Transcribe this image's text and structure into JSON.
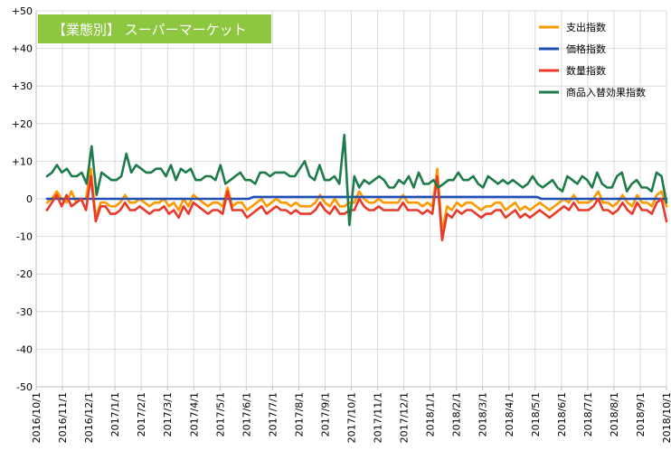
{
  "chart_data": {
    "type": "line",
    "title": "【業態別】 スーパーマーケット",
    "title_bg_color": "#8DC63F",
    "ylim": [
      -50,
      50
    ],
    "yticks": [
      50,
      40,
      30,
      20,
      10,
      0,
      -10,
      -20,
      -30,
      -40,
      -50
    ],
    "ytick_labels": [
      "+50",
      "+40",
      "+30",
      "+20",
      "+10",
      "0",
      "-10",
      "-20",
      "-30",
      "-40",
      "-50"
    ],
    "grid": true,
    "legend_position": "top-right",
    "x_start": "2016/10/1",
    "x_end": "2018/10/1",
    "xtick_labels": [
      "2016/10/1",
      "2016/11/1",
      "2016/12/1",
      "2017/1/1",
      "2017/2/1",
      "2017/3/1",
      "2017/4/1",
      "2017/5/1",
      "2017/6/1",
      "2017/7/1",
      "2017/8/1",
      "2017/9/1",
      "2017/10/1",
      "2017/11/1",
      "2017/12/1",
      "2018/1/1",
      "2018/2/1",
      "2018/3/1",
      "2018/4/1",
      "2018/5/1",
      "2018/6/1",
      "2018/7/1",
      "2018/8/1",
      "2018/9/1",
      "2018/10/1"
    ],
    "series": [
      {
        "name": "支出指数",
        "color": "#FF9900",
        "values": [
          -1,
          0,
          2,
          0,
          -1,
          2,
          -1,
          0,
          0,
          8,
          -5,
          -1,
          -1,
          -2,
          -2,
          -1,
          1,
          -1,
          -1,
          0,
          -1,
          -2,
          -1,
          -1,
          0,
          -2,
          -1,
          -3,
          0,
          -2,
          1,
          0,
          -1,
          -2,
          -1,
          -1,
          -2,
          3,
          -2,
          -1,
          -1,
          -3,
          -2,
          -1,
          0,
          -2,
          -1,
          0,
          -1,
          -1,
          -2,
          -1,
          -2,
          -2,
          -2,
          -1,
          1,
          -1,
          -2,
          0,
          -2,
          -2,
          -1,
          -1,
          2,
          0,
          -1,
          -1,
          0,
          -1,
          -1,
          -1,
          -1,
          1,
          -1,
          -1,
          -1,
          -2,
          -1,
          -2,
          8,
          -9,
          -2,
          -3,
          -1,
          -2,
          -1,
          -1,
          -2,
          -3,
          -2,
          -2,
          -1,
          -1,
          -3,
          -2,
          -1,
          -3,
          -2,
          -3,
          -2,
          -1,
          -2,
          -3,
          -2,
          -1,
          0,
          -1,
          1,
          -1,
          -1,
          -1,
          0,
          2,
          -1,
          -1,
          -2,
          -1,
          1,
          -1,
          -2,
          1,
          -1,
          -1,
          -2,
          1,
          2,
          -2
        ]
      },
      {
        "name": "価格指数",
        "color": "#1F4EB4",
        "values": [
          0,
          0,
          0,
          0,
          0,
          0,
          0,
          0,
          0,
          0,
          0,
          0,
          0,
          0,
          0,
          0,
          0,
          0,
          0,
          0,
          0,
          0,
          0,
          0,
          0,
          0,
          0,
          0,
          0,
          0,
          0,
          0,
          0,
          0,
          0,
          0,
          0,
          0,
          0,
          0,
          0,
          0,
          0,
          0.5,
          0.5,
          0.5,
          0.5,
          0.5,
          0.5,
          0.5,
          0.5,
          0.5,
          0.5,
          0.5,
          0.5,
          0.5,
          0.5,
          0.5,
          0.5,
          0.5,
          0.5,
          0.5,
          0.5,
          0.5,
          0.5,
          0.5,
          0.5,
          0.5,
          0.5,
          0.5,
          0.5,
          0.5,
          0.5,
          0.5,
          0.5,
          0.5,
          0.5,
          0.5,
          0.5,
          0.5,
          0.5,
          0.5,
          0.5,
          0.5,
          0.5,
          0.5,
          0.5,
          0.5,
          0.5,
          0.5,
          0.5,
          0.5,
          0.5,
          0.5,
          0.5,
          0.5,
          0.5,
          0.5,
          0.5,
          0.5,
          0.5,
          0.5,
          0.5,
          0,
          0,
          0,
          0,
          0,
          0,
          0,
          0,
          0,
          0,
          0,
          0,
          0,
          0,
          0,
          0,
          0,
          0,
          0,
          0,
          0,
          0,
          0,
          0,
          0,
          0,
          0
        ]
      },
      {
        "name": "数量指数",
        "color": "#E8392B",
        "values": [
          -3,
          -1,
          1,
          -2,
          1,
          -2,
          -1,
          0,
          -3,
          6,
          -6,
          -2,
          -2,
          -4,
          -4,
          -3,
          -1,
          -3,
          -3,
          -2,
          -3,
          -4,
          -3,
          -3,
          -2,
          -4,
          -3,
          -5,
          -2,
          -4,
          -1,
          -2,
          -3,
          -4,
          -3,
          -3,
          -4,
          2,
          -3,
          -3,
          -3,
          -5,
          -4,
          -3,
          -2,
          -4,
          -3,
          -2,
          -3,
          -3,
          -4,
          -3,
          -4,
          -4,
          -4,
          -3,
          -1,
          -3,
          -4,
          -2,
          -4,
          -4,
          -3,
          -3,
          0,
          -2,
          -3,
          -3,
          -2,
          -3,
          -3,
          -3,
          -3,
          -1,
          -3,
          -3,
          -3,
          -4,
          -3,
          -4,
          6,
          -11,
          -4,
          -5,
          -3,
          -4,
          -3,
          -3,
          -4,
          -5,
          -4,
          -4,
          -3,
          -3,
          -5,
          -4,
          -3,
          -5,
          -4,
          -5,
          -4,
          -3,
          -4,
          -5,
          -4,
          -3,
          -2,
          -3,
          -1,
          -3,
          -3,
          -3,
          -2,
          0,
          -3,
          -3,
          -4,
          -3,
          -1,
          -3,
          -4,
          -1,
          -3,
          -3,
          -4,
          -1,
          0,
          -6
        ]
      },
      {
        "name": "商品入替効果指数",
        "color": "#1E7B4A",
        "values": [
          6,
          7,
          9,
          7,
          8,
          6,
          6,
          7,
          4,
          14,
          1,
          7,
          6,
          5,
          5,
          6,
          12,
          7,
          9,
          8,
          7,
          7,
          8,
          8,
          6,
          9,
          5,
          8,
          7,
          8,
          5,
          5,
          6,
          6,
          5,
          9,
          4,
          5,
          6,
          7,
          5,
          5,
          4,
          7,
          7,
          6,
          7,
          7,
          7,
          6,
          6,
          8,
          10,
          6,
          5,
          9,
          5,
          5,
          6,
          4,
          17,
          -7,
          6,
          3,
          5,
          4,
          5,
          6,
          5,
          3,
          3,
          5,
          4,
          6,
          3,
          7,
          4,
          4,
          5,
          3,
          4,
          5,
          5,
          7,
          5,
          5,
          6,
          4,
          3,
          6,
          5,
          4,
          5,
          4,
          5,
          4,
          3,
          4,
          6,
          4,
          3,
          4,
          5,
          3,
          2,
          6,
          5,
          4,
          6,
          5,
          3,
          7,
          4,
          3,
          3,
          6,
          7,
          2,
          4,
          5,
          3,
          3,
          2,
          7,
          6,
          -1
        ]
      }
    ]
  }
}
